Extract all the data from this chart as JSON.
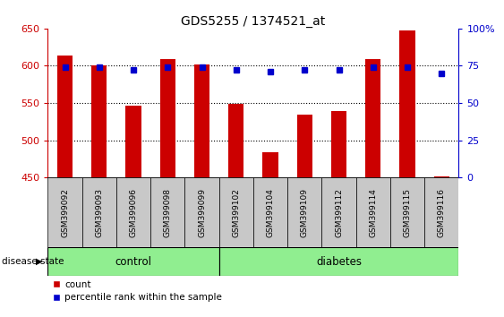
{
  "title": "GDS5255 / 1374521_at",
  "samples": [
    "GSM399092",
    "GSM399093",
    "GSM399096",
    "GSM399098",
    "GSM399099",
    "GSM399102",
    "GSM399104",
    "GSM399109",
    "GSM399112",
    "GSM399114",
    "GSM399115",
    "GSM399116"
  ],
  "counts": [
    614,
    600,
    546,
    609,
    602,
    549,
    484,
    534,
    539,
    609,
    647,
    452
  ],
  "percentile_ranks": [
    74,
    74,
    72,
    74,
    74,
    72,
    71,
    72,
    72,
    74,
    74,
    70
  ],
  "bar_color": "#cc0000",
  "dot_color": "#0000cc",
  "ylim_left": [
    450,
    650
  ],
  "ylim_right": [
    0,
    100
  ],
  "yticks_left": [
    450,
    500,
    550,
    600,
    650
  ],
  "yticks_right": [
    0,
    25,
    50,
    75,
    100
  ],
  "right_tick_labels": [
    "0",
    "25",
    "50",
    "75",
    "100%"
  ],
  "n_control": 5,
  "n_diabetes": 7,
  "plot_bg_color": "#ffffff",
  "label_bg_color": "#c8c8c8",
  "green_color": "#90ee90",
  "bar_width": 0.45,
  "baseline": 450
}
